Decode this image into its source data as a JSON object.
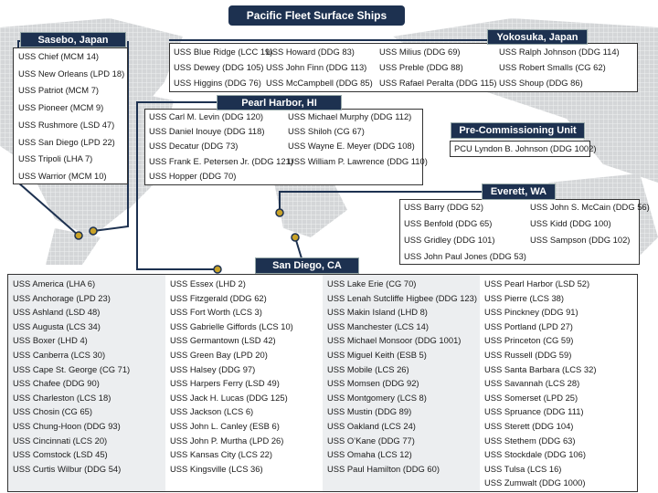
{
  "title": "Pacific Fleet Surface Ships",
  "groups": [
    {
      "label": "Sasebo, Japan",
      "columns": [
        [
          "USS Chief (MCM 14)",
          "USS New Orleans (LPD 18)",
          "USS Patriot (MCM 7)",
          "USS Pioneer (MCM 9)",
          "USS Rushmore (LSD 47)",
          "USS San Diego (LPD 22)",
          "USS Tripoli (LHA 7)",
          "USS Warrior (MCM 10)"
        ]
      ]
    },
    {
      "label": "Yokosuka, Japan",
      "columns": [
        [
          "USS Blue Ridge (LCC 19)",
          "USS Dewey (DDG 105)",
          "USS Higgins (DDG 76)"
        ],
        [
          "USS Howard (DDG 83)",
          "USS John Finn (DDG 113)",
          "USS McCampbell (DDG 85)"
        ],
        [
          "USS Milius (DDG 69)",
          "USS Preble (DDG 88)",
          "USS Rafael Peralta (DDG 115)"
        ],
        [
          "USS Ralph Johnson (DDG 114)",
          "USS Robert Smalls (CG 62)",
          "USS Shoup (DDG 86)"
        ]
      ]
    },
    {
      "label": "Pearl Harbor, HI",
      "columns": [
        [
          "USS Carl M. Levin (DDG 120)",
          "USS Daniel Inouye (DDG 118)",
          "USS Decatur (DDG 73)",
          "USS Frank E. Petersen Jr. (DDG 121)",
          "USS Hopper (DDG 70)"
        ],
        [
          "USS Michael Murphy (DDG 112)",
          "USS Shiloh (CG 67)",
          "USS Wayne E. Meyer (DDG 108)",
          "USS William P. Lawrence (DDG 110)"
        ]
      ]
    },
    {
      "label": "Pre-Commissioning Unit",
      "columns": [
        [
          "PCU Lyndon B. Johnson (DDG 1002)"
        ]
      ]
    },
    {
      "label": "Everett, WA",
      "columns": [
        [
          "USS Barry (DDG 52)",
          "USS Benfold (DDG 65)",
          "USS Gridley (DDG 101)",
          "USS John Paul Jones (DDG 53)"
        ],
        [
          "USS John S. McCain (DDG 56)",
          "USS Kidd (DDG 100)",
          "USS Sampson (DDG 102)"
        ]
      ]
    },
    {
      "label": "San Diego, CA",
      "columns": [
        [
          "USS America (LHA 6)",
          "USS Anchorage (LPD 23)",
          "USS Ashland (LSD 48)",
          "USS Augusta (LCS 34)",
          "USS Boxer (LHD 4)",
          "USS Canberra (LCS 30)",
          "USS Cape St. George (CG 71)",
          "USS Chafee (DDG 90)",
          "USS Charleston (LCS 18)",
          "USS Chosin (CG 65)",
          "USS Chung-Hoon (DDG 93)",
          "USS Cincinnati (LCS 20)",
          "USS Comstock (LSD 45)",
          "USS Curtis Wilbur (DDG 54)"
        ],
        [
          "USS Essex (LHD 2)",
          "USS Fitzgerald (DDG 62)",
          "USS Fort Worth (LCS 3)",
          "USS Gabrielle Giffords (LCS 10)",
          "USS Germantown (LSD 42)",
          "USS Green Bay (LPD 20)",
          "USS Halsey (DDG 97)",
          "USS Harpers Ferry (LSD 49)",
          "USS Jack H. Lucas (DDG 125)",
          "USS Jackson (LCS 6)",
          "USS John L. Canley (ESB 6)",
          "USS John P. Murtha (LPD 26)",
          "USS Kansas City (LCS 22)",
          "USS Kingsville (LCS 36)"
        ],
        [
          "USS Lake Erie (CG 70)",
          "USS Lenah Sutcliffe Higbee (DDG 123)",
          "USS Makin Island (LHD 8)",
          "USS Manchester (LCS 14)",
          "USS Michael Monsoor (DDG 1001)",
          "USS Miguel Keith (ESB 5)",
          "USS Mobile (LCS 26)",
          "USS Momsen (DDG 92)",
          "USS Montgomery (LCS 8)",
          "USS Mustin (DDG 89)",
          "USS Oakland (LCS 24)",
          "USS O’Kane (DDG 77)",
          "USS Omaha (LCS 12)",
          "USS Paul Hamilton (DDG 60)"
        ],
        [
          "USS Pearl Harbor (LSD 52)",
          "USS Pierre (LCS 38)",
          "USS Pinckney (DDG 91)",
          "USS Portland (LPD 27)",
          "USS Princeton (CG 59)",
          "USS Russell (DDG 59)",
          "USS Santa Barbara (LCS 32)",
          "USS Savannah (LCS 28)",
          "USS Somerset (LPD 25)",
          "USS Spruance (DDG 111)",
          "USS Sterett (DDG 104)",
          "USS Stethem (DDG 63)",
          "USS Stockdale (DDG 106)",
          "USS Tulsa (LCS 16)",
          "USS Zumwalt (DDG 1000)"
        ]
      ]
    }
  ]
}
